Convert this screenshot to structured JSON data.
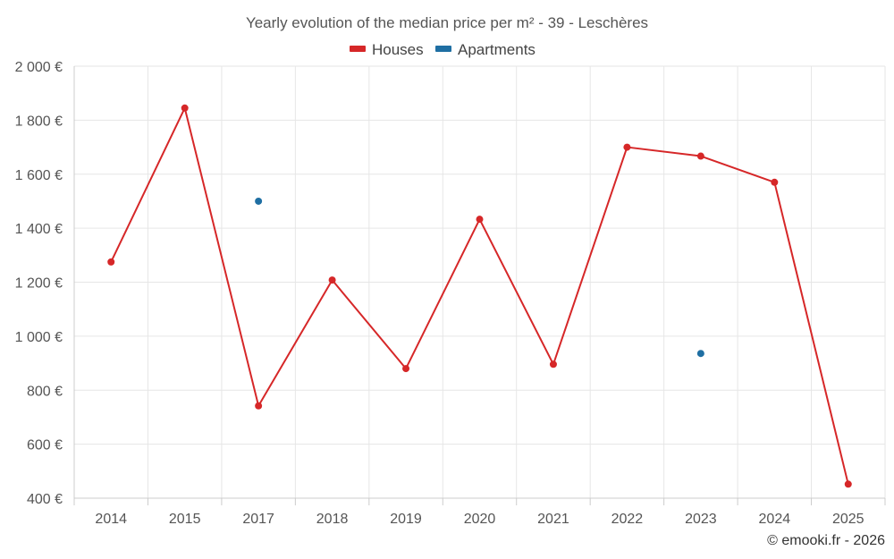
{
  "chart_data": {
    "type": "line",
    "title": "Yearly evolution of the median price per m² - 39 - Leschères",
    "categories": [
      "2014",
      "2015",
      "2017",
      "2018",
      "2019",
      "2020",
      "2021",
      "2022",
      "2023",
      "2024",
      "2025"
    ],
    "series": [
      {
        "name": "Houses",
        "color": "#d62728",
        "values": [
          1275,
          1845,
          742,
          1208,
          880,
          1433,
          896,
          1700,
          1667,
          1570,
          452
        ]
      },
      {
        "name": "Apartments",
        "color": "#1f6fa3",
        "values": [
          null,
          null,
          1500,
          null,
          null,
          null,
          null,
          null,
          936,
          null,
          null
        ]
      }
    ],
    "ylim": [
      400,
      2000
    ],
    "yticks": [
      400,
      600,
      800,
      1000,
      1200,
      1400,
      1600,
      1800,
      2000
    ],
    "ytick_labels": [
      "400 €",
      "600 €",
      "800 €",
      "1 000 €",
      "1 200 €",
      "1 400 €",
      "1 600 €",
      "1 800 €",
      "2 000 €"
    ],
    "xlabel": "",
    "ylabel": "",
    "grid": true,
    "legend_position": "top-center",
    "credit": "© emooki.fr - 2026"
  }
}
